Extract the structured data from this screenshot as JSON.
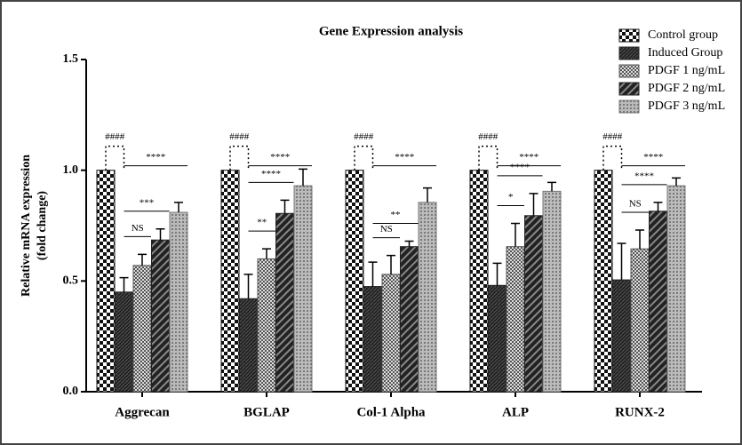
{
  "chart_data": {
    "type": "bar",
    "title": "Gene Expression analysis",
    "ylabel": [
      "Relative mRNA expression",
      "(fold change)"
    ],
    "categories": [
      "Aggrecan",
      "BGLAP",
      "Col-1 Alpha",
      "ALP",
      "RUNX-2"
    ],
    "series": [
      {
        "name": "Control group",
        "color": "#111111",
        "pattern": "checker",
        "values": [
          1.0,
          1.0,
          1.0,
          1.0,
          1.0
        ]
      },
      {
        "name": "Induced Group",
        "color": "#222222",
        "pattern": "dark",
        "values": [
          0.45,
          0.42,
          0.475,
          0.48,
          0.505
        ],
        "errors": [
          0.065,
          0.11,
          0.11,
          0.1,
          0.165
        ]
      },
      {
        "name": "PDGF 1 ng/mL",
        "color": "#555555",
        "pattern": "finechecker",
        "values": [
          0.57,
          0.6,
          0.53,
          0.655,
          0.645
        ],
        "errors": [
          0.05,
          0.045,
          0.085,
          0.105,
          0.085
        ]
      },
      {
        "name": "PDGF 2 ng/mL",
        "color": "#222222",
        "pattern": "stripes",
        "values": [
          0.685,
          0.805,
          0.655,
          0.795,
          0.815
        ],
        "errors": [
          0.05,
          0.06,
          0.025,
          0.1,
          0.04
        ]
      },
      {
        "name": "PDGF 3 ng/mL",
        "color": "#777777",
        "pattern": "dots",
        "values": [
          0.81,
          0.93,
          0.855,
          0.905,
          0.93
        ],
        "errors": [
          0.045,
          0.075,
          0.065,
          0.04,
          0.035
        ]
      }
    ],
    "annotations": [
      [
        "####",
        "NS",
        "***",
        "****"
      ],
      [
        "####",
        "**",
        "****",
        "****"
      ],
      [
        "####",
        "NS",
        "**",
        "****"
      ],
      [
        "####",
        "*",
        "****",
        "****"
      ],
      [
        "####",
        "NS",
        "****",
        "****"
      ]
    ],
    "ylim": [
      0,
      1.5
    ],
    "yticks": [
      {
        "value": 0,
        "label": "0.0"
      },
      0.5,
      {
        "value": 1,
        "label": "1.0"
      },
      1.5
    ],
    "legend": "top-right"
  }
}
